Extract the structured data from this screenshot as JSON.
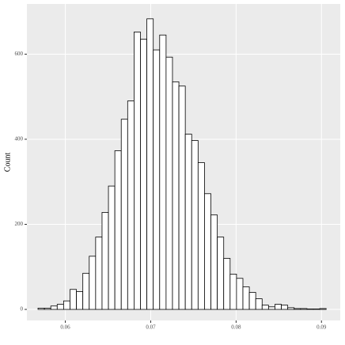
{
  "chart_data": {
    "type": "histogram",
    "y_label": "Count",
    "bins": [
      0.0568,
      0.05755,
      0.0583,
      0.05905,
      0.0598,
      0.06055,
      0.0613,
      0.06205,
      0.0628,
      0.06355,
      0.0643,
      0.06505,
      0.0658,
      0.06655,
      0.0673,
      0.06805,
      0.0688,
      0.06955,
      0.0703,
      0.07105,
      0.0718,
      0.07255,
      0.0733,
      0.07405,
      0.0748,
      0.07555,
      0.0763,
      0.07705,
      0.0778,
      0.07855,
      0.0793,
      0.08005,
      0.0808,
      0.08155,
      0.0823,
      0.08305,
      0.0838,
      0.08455,
      0.0853,
      0.08605,
      0.0868,
      0.08755,
      0.0883,
      0.08905,
      0.0898,
      0.09055
    ],
    "values": [
      3,
      3,
      8,
      12,
      20,
      47,
      42,
      85,
      125,
      170,
      228,
      290,
      373,
      447,
      490,
      652,
      635,
      683,
      610,
      645,
      593,
      535,
      525,
      412,
      397,
      345,
      272,
      222,
      170,
      120,
      83,
      73,
      53,
      40,
      25,
      10,
      6,
      12,
      10,
      4,
      2,
      2,
      1,
      1,
      2
    ],
    "color": "#ffffff",
    "edge_color": "#000000",
    "xlim": [
      0.0555,
      0.0922
    ],
    "xticks": [
      0.06,
      0.07,
      0.08,
      0.09
    ],
    "ylim": [
      -26,
      718
    ],
    "yticks": [
      0,
      200,
      400,
      600
    ],
    "grid": true
  }
}
